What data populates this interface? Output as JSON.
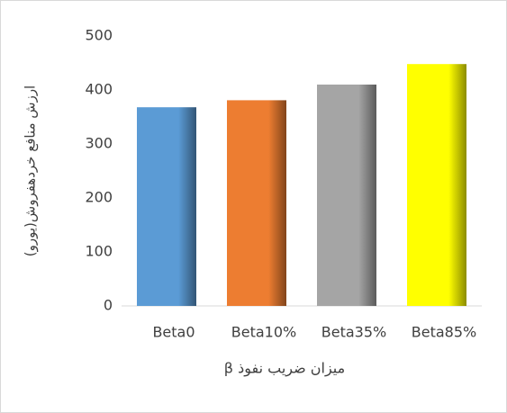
{
  "chart_data": {
    "type": "bar",
    "x_label": "میزان ضریب نفوذ β",
    "y_label": "ارزش منافع خردهفروش(یورو)",
    "categories": [
      "Beta0",
      "Beta10%",
      "Beta35%",
      "Beta85%"
    ],
    "values": [
      368,
      381,
      410,
      448
    ],
    "colors": [
      "#5b9bd5",
      "#ed7d31",
      "#a5a5a5",
      "#ffff00"
    ],
    "ylim": [
      0,
      500
    ],
    "yticks": [
      0,
      100,
      200,
      300,
      400,
      500
    ],
    "grid": false
  }
}
